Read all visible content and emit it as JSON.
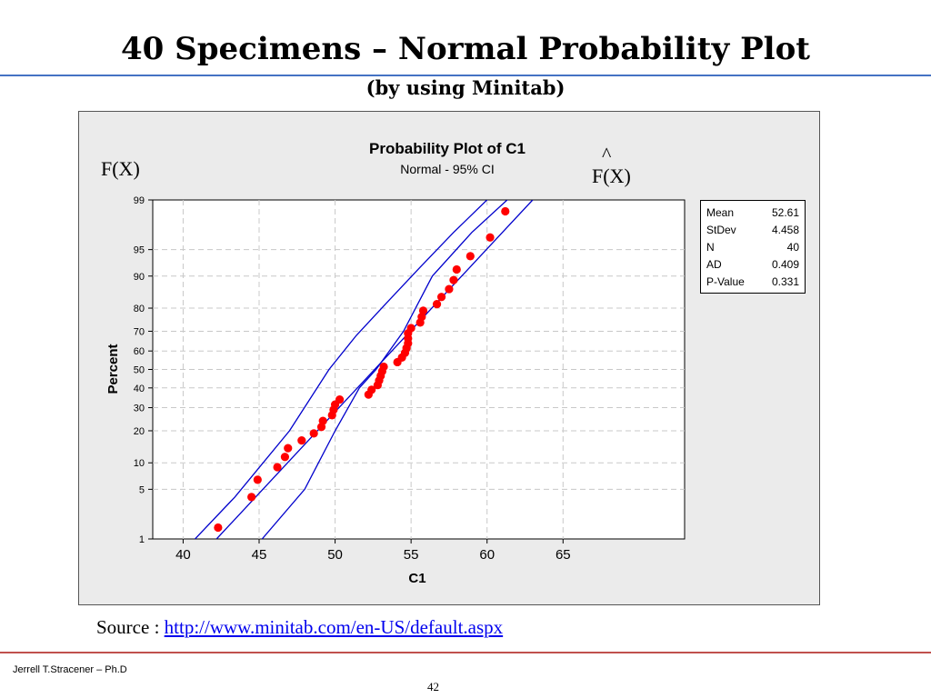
{
  "slide": {
    "title": "40 Specimens – Normal Probability Plot",
    "subtitle": "(by using Minitab)",
    "annotation_fx": "F(X)",
    "annotation_fx_hat_caret": "^",
    "annotation_fx_hat": "F(X)",
    "source_label": "Source : ",
    "source_link": "http://www.minitab.com/en-US/default.aspx",
    "footer_author": "Jerrell T.Stracener – Ph.D",
    "page_number": "42"
  },
  "stats": [
    {
      "label": "Mean",
      "value": "52.61"
    },
    {
      "label": "StDev",
      "value": "4.458"
    },
    {
      "label": "N",
      "value": "40"
    },
    {
      "label": "AD",
      "value": "0.409"
    },
    {
      "label": "P-Value",
      "value": "0.331"
    }
  ],
  "colors": {
    "accent_rule": "#4472C4",
    "footer_rule": "#C0504D",
    "points": "#FF0000",
    "lines": "#0000CC",
    "plot_background": "#FFFFFF",
    "frame_background": "#EBEBEB"
  },
  "chart_data": {
    "type": "scatter",
    "title": "Probability Plot of C1",
    "subtitle": "Normal - 95% CI",
    "xlabel": "C1",
    "ylabel": "Percent",
    "y_scale": "normal-probability",
    "xlim": [
      38,
      73
    ],
    "ylim": [
      1,
      99
    ],
    "xticks": [
      40,
      45,
      50,
      55,
      60,
      65
    ],
    "yticks": [
      1,
      5,
      10,
      20,
      30,
      40,
      50,
      60,
      70,
      80,
      90,
      95,
      99
    ],
    "grid": true,
    "mean": 52.61,
    "stdev": 4.458,
    "points": [
      {
        "x": 42.3,
        "y": 1.5
      },
      {
        "x": 44.5,
        "y": 4
      },
      {
        "x": 44.9,
        "y": 6.5
      },
      {
        "x": 46.2,
        "y": 9
      },
      {
        "x": 46.7,
        "y": 11.5
      },
      {
        "x": 46.9,
        "y": 14
      },
      {
        "x": 47.8,
        "y": 16.5
      },
      {
        "x": 48.6,
        "y": 19
      },
      {
        "x": 49.1,
        "y": 21.5
      },
      {
        "x": 49.2,
        "y": 24
      },
      {
        "x": 49.8,
        "y": 26.5
      },
      {
        "x": 49.9,
        "y": 29
      },
      {
        "x": 50.0,
        "y": 31.5
      },
      {
        "x": 50.3,
        "y": 34
      },
      {
        "x": 52.2,
        "y": 36.5
      },
      {
        "x": 52.4,
        "y": 39
      },
      {
        "x": 52.8,
        "y": 41.5
      },
      {
        "x": 52.9,
        "y": 44
      },
      {
        "x": 53.0,
        "y": 46.5
      },
      {
        "x": 53.1,
        "y": 49
      },
      {
        "x": 53.2,
        "y": 51.5
      },
      {
        "x": 54.1,
        "y": 54
      },
      {
        "x": 54.4,
        "y": 56.5
      },
      {
        "x": 54.6,
        "y": 59
      },
      {
        "x": 54.7,
        "y": 61.5
      },
      {
        "x": 54.8,
        "y": 64
      },
      {
        "x": 54.8,
        "y": 66.5
      },
      {
        "x": 54.8,
        "y": 69
      },
      {
        "x": 55.0,
        "y": 71.5
      },
      {
        "x": 55.6,
        "y": 74
      },
      {
        "x": 55.7,
        "y": 76.5
      },
      {
        "x": 55.8,
        "y": 79
      },
      {
        "x": 56.7,
        "y": 81.5
      },
      {
        "x": 57.0,
        "y": 84
      },
      {
        "x": 57.5,
        "y": 86.5
      },
      {
        "x": 57.8,
        "y": 89
      },
      {
        "x": 58.0,
        "y": 91.5
      },
      {
        "x": 58.9,
        "y": 94
      },
      {
        "x": 60.2,
        "y": 96.5
      },
      {
        "x": 61.2,
        "y": 98.5
      }
    ],
    "fit_line": {
      "x_at_1": 42.2,
      "x_at_99": 63.0
    },
    "ci_lower": [
      {
        "x": 45.2,
        "y": 1
      },
      {
        "x": 48.0,
        "y": 5
      },
      {
        "x": 50.0,
        "y": 20
      },
      {
        "x": 51.6,
        "y": 40
      },
      {
        "x": 52.7,
        "y": 50
      },
      {
        "x": 54.5,
        "y": 70
      },
      {
        "x": 56.4,
        "y": 90
      },
      {
        "x": 59.0,
        "y": 97
      },
      {
        "x": 64.2,
        "y": 99.8
      }
    ],
    "ci_upper": [
      {
        "x": 39.8,
        "y": 0.55
      },
      {
        "x": 43.4,
        "y": 4
      },
      {
        "x": 47.0,
        "y": 20
      },
      {
        "x": 49.6,
        "y": 50
      },
      {
        "x": 51.4,
        "y": 68
      },
      {
        "x": 53.4,
        "y": 82
      },
      {
        "x": 55.6,
        "y": 92
      },
      {
        "x": 57.8,
        "y": 97
      },
      {
        "x": 60.4,
        "y": 99.2
      }
    ]
  }
}
